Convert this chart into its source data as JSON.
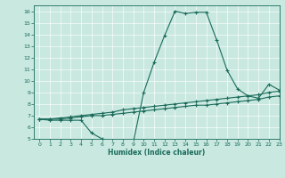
{
  "title": "",
  "xlabel": "Humidex (Indice chaleur)",
  "bg_color": "#c8e8e0",
  "line_color": "#1a6b5a",
  "grid_color": "#aacccc",
  "xlim": [
    -0.5,
    23
  ],
  "ylim": [
    5,
    16.5
  ],
  "xticks": [
    0,
    1,
    2,
    3,
    4,
    5,
    6,
    7,
    8,
    9,
    10,
    11,
    12,
    13,
    14,
    15,
    16,
    17,
    18,
    19,
    20,
    21,
    22,
    23
  ],
  "yticks": [
    5,
    6,
    7,
    8,
    9,
    10,
    11,
    12,
    13,
    14,
    15,
    16
  ],
  "curve1_x": [
    0,
    1,
    2,
    3,
    4,
    5,
    6,
    7,
    8,
    9,
    10,
    11,
    12,
    13,
    14,
    15,
    16,
    17,
    18,
    19,
    20,
    21,
    22,
    23
  ],
  "curve1_y": [
    6.7,
    6.6,
    6.6,
    6.6,
    6.6,
    5.5,
    5.0,
    4.7,
    4.7,
    4.7,
    9.0,
    11.6,
    13.9,
    16.0,
    15.8,
    15.9,
    15.9,
    13.5,
    10.9,
    9.3,
    8.7,
    8.5,
    9.7,
    9.2
  ],
  "curve2_x": [
    0,
    1,
    2,
    3,
    4,
    5,
    6,
    7,
    8,
    9,
    10,
    11,
    12,
    13,
    14,
    15,
    16,
    17,
    18,
    19,
    20,
    21,
    22,
    23
  ],
  "curve2_y": [
    6.7,
    6.7,
    6.8,
    6.9,
    7.0,
    7.1,
    7.2,
    7.3,
    7.5,
    7.6,
    7.7,
    7.8,
    7.9,
    8.0,
    8.1,
    8.2,
    8.3,
    8.4,
    8.5,
    8.6,
    8.7,
    8.8,
    9.0,
    9.1
  ],
  "curve3_x": [
    0,
    1,
    2,
    3,
    4,
    5,
    6,
    7,
    8,
    9,
    10,
    11,
    12,
    13,
    14,
    15,
    16,
    17,
    18,
    19,
    20,
    21,
    22,
    23
  ],
  "curve3_y": [
    6.7,
    6.7,
    6.7,
    6.8,
    6.9,
    7.0,
    7.0,
    7.1,
    7.2,
    7.3,
    7.4,
    7.5,
    7.6,
    7.7,
    7.8,
    7.9,
    7.9,
    8.0,
    8.1,
    8.2,
    8.3,
    8.4,
    8.6,
    8.7
  ]
}
